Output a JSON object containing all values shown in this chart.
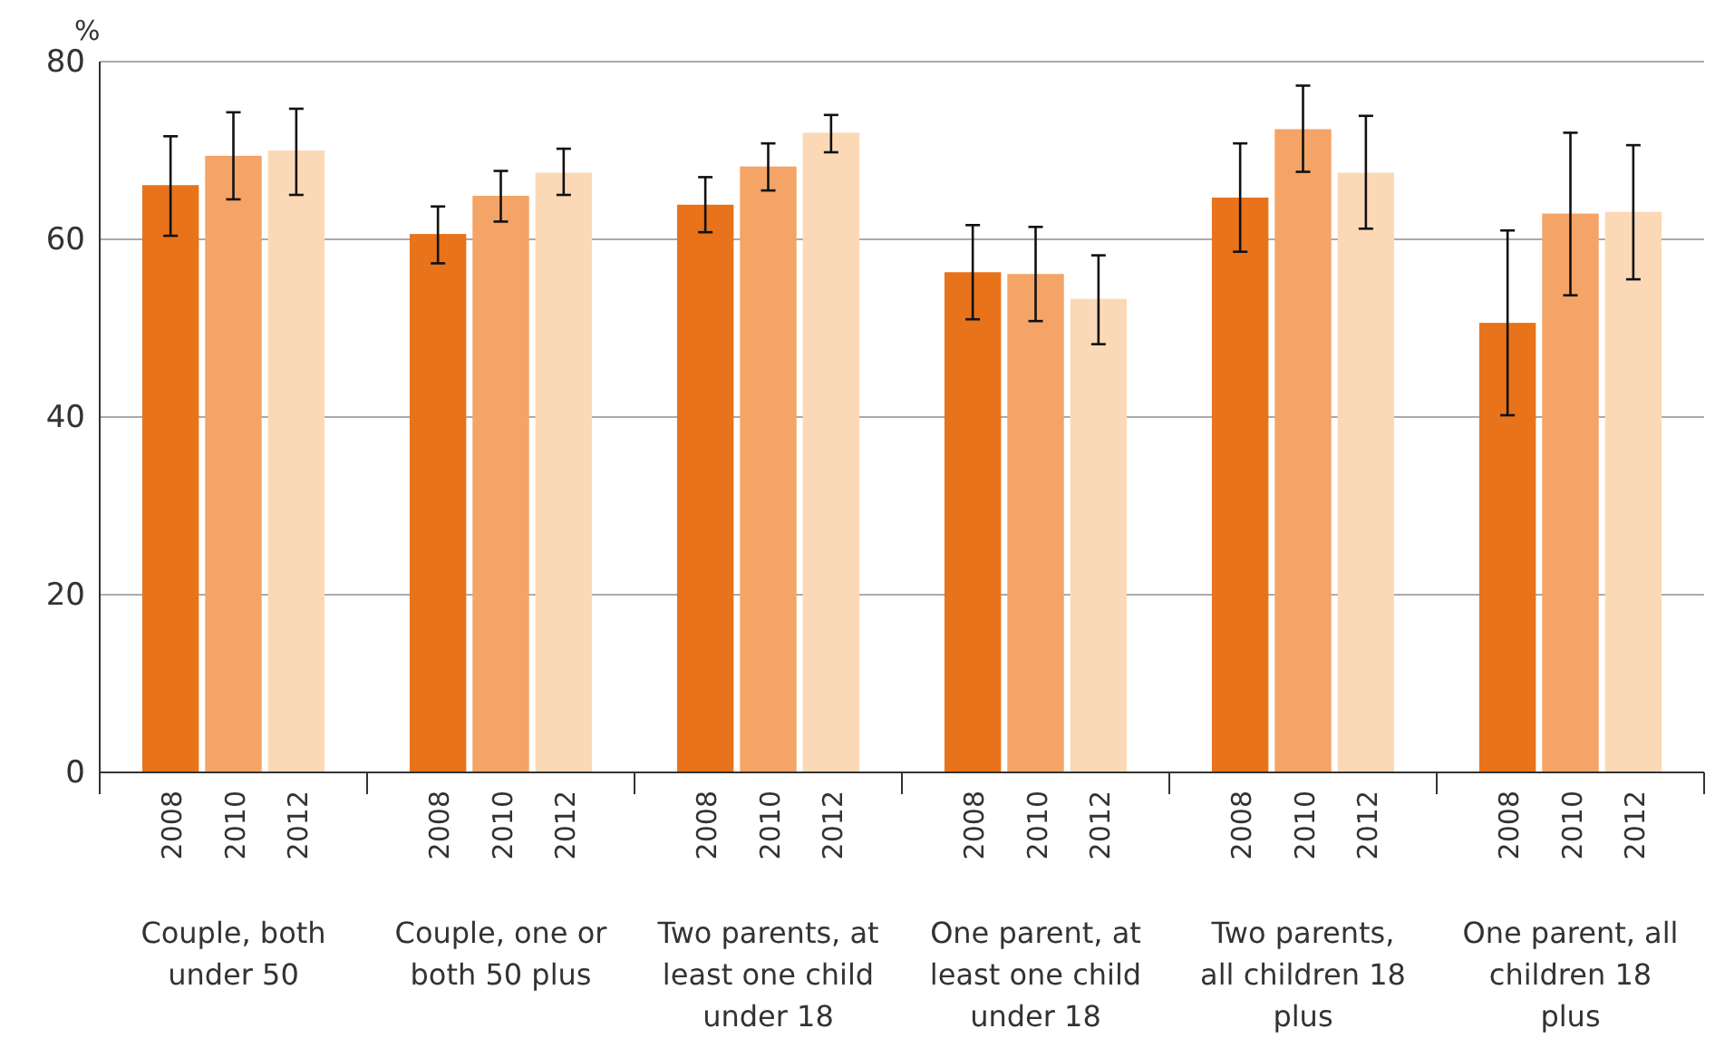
{
  "chart_data": {
    "type": "bar",
    "ylabel": "%",
    "categories": [
      "Couple, both under 50",
      "Couple, one or both 50 plus",
      "Two parents, at least one child under 18",
      "One parent, at least one child under 18",
      "Two parents, all children 18 plus",
      "One parent, all children 18 plus"
    ],
    "series": [
      {
        "name": "2008",
        "color": "#e8731a",
        "values": [
          66.1,
          60.6,
          63.9,
          56.3,
          64.7,
          50.6
        ],
        "errors": [
          [
            60.4,
            71.6
          ],
          [
            57.3,
            63.7
          ],
          [
            60.8,
            67
          ],
          [
            51,
            61.6
          ],
          [
            58.6,
            70.8
          ],
          [
            40.2,
            61
          ]
        ]
      },
      {
        "name": "2010",
        "color": "#f4a466",
        "values": [
          69.4,
          64.9,
          68.2,
          56.1,
          72.4,
          62.9
        ],
        "errors": [
          [
            64.5,
            74.3
          ],
          [
            62,
            67.7
          ],
          [
            65.5,
            70.8
          ],
          [
            50.8,
            61.4
          ],
          [
            67.6,
            77.3
          ],
          [
            53.7,
            72
          ]
        ]
      },
      {
        "name": "2012",
        "color": "#fcd9b6",
        "values": [
          70,
          67.5,
          72,
          53.3,
          67.5,
          63.1
        ],
        "errors": [
          [
            65,
            74.7
          ],
          [
            65,
            70.2
          ],
          [
            69.8,
            74
          ],
          [
            48.2,
            58.2
          ],
          [
            61.2,
            73.9
          ],
          [
            55.5,
            70.6
          ]
        ]
      }
    ],
    "ylim": [
      0,
      80
    ],
    "yticks": [
      0,
      20,
      40,
      60,
      80
    ],
    "grid": "y"
  }
}
